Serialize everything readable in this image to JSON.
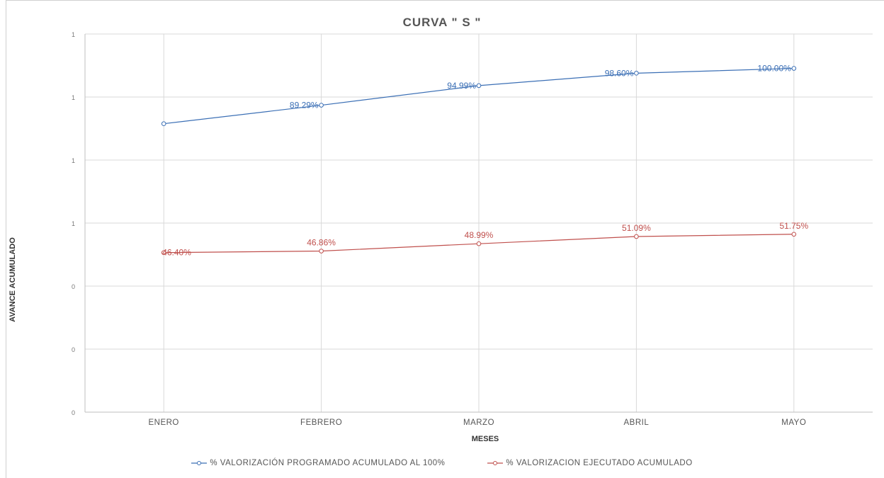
{
  "chart_data": {
    "type": "line",
    "title": "CURVA \" S \"",
    "xlabel": "MESES",
    "ylabel": "AVANCE ACUMULADO",
    "categories": [
      "ENERO",
      "FEBRERO",
      "MARZO",
      "ABRIL",
      "MAYO"
    ],
    "ytick_labels": [
      "0",
      "0",
      "0",
      "1",
      "1",
      "1",
      "1"
    ],
    "grid": true,
    "legend_position": "bottom",
    "series": [
      {
        "name": "% VALORIZACIÓN PROGRAMADO ACUMULADO AL 100%",
        "color": "#3b6fb5",
        "values": [
          83.9,
          89.29,
          94.99,
          98.6,
          100.0
        ],
        "labels": [
          "",
          "89.29%",
          "94.99%",
          "98.60%",
          "100.00%"
        ]
      },
      {
        "name": "% VALORIZACION EJECUTADO ACUMULADO",
        "color": "#c0504d",
        "values": [
          46.4,
          46.86,
          48.99,
          51.09,
          51.75
        ],
        "labels": [
          "46.40%",
          "46.86%",
          "48.99%",
          "51.09%",
          "51.75%"
        ]
      }
    ]
  }
}
